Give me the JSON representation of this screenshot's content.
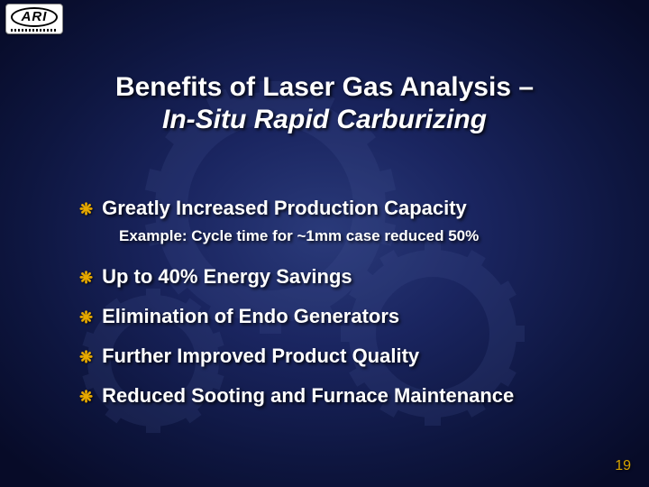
{
  "logo": {
    "text": "ARI"
  },
  "title": {
    "line1": "Benefits of Laser Gas Analysis –",
    "line2": "In-Situ Rapid Carburizing"
  },
  "bullets": [
    {
      "text": "Greatly Increased Production Capacity",
      "sub": "Example: Cycle time for ~1mm case reduced 50%"
    },
    {
      "text": "Up to 40% Energy Savings"
    },
    {
      "text": "Elimination of Endo Generators"
    },
    {
      "text": "Further Improved Product Quality"
    },
    {
      "text": "Reduced Sooting and Furnace Maintenance"
    }
  ],
  "page_number": "19",
  "colors": {
    "bullet_icon": "#e6a800",
    "page_number": "#d8a400",
    "text": "#ffffff",
    "bg_inner": "#2a3a7a",
    "bg_outer": "#070b28"
  },
  "fonts": {
    "title_size_pt": 30,
    "bullet_size_pt": 22,
    "sub_size_pt": 17,
    "page_num_size_pt": 16,
    "family": "Arial"
  }
}
